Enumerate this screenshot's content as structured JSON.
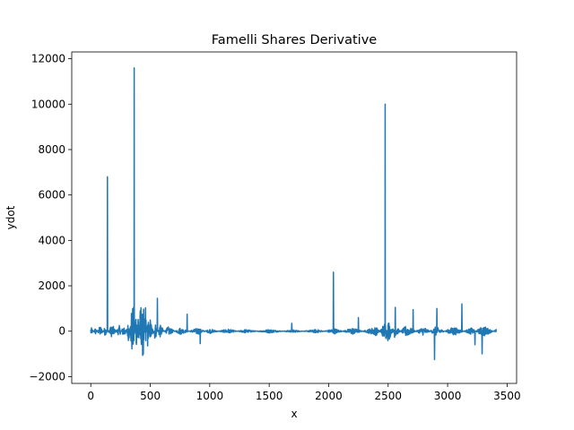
{
  "chart_data": {
    "type": "line",
    "title": "Famelli Shares Derivative",
    "xlabel": "x",
    "ylabel": "ydot",
    "xlim": [
      -160,
      3580
    ],
    "ylim": [
      -2300,
      12300
    ],
    "grid": false,
    "legend": "none",
    "x_ticks": [
      0,
      500,
      1000,
      1500,
      2000,
      2500,
      3000,
      3500
    ],
    "y_ticks": [
      -2000,
      0,
      2000,
      4000,
      6000,
      8000,
      10000,
      12000
    ],
    "x_tick_labels": [
      "0",
      "500",
      "1000",
      "1500",
      "2000",
      "2500",
      "3000",
      "3500"
    ],
    "y_tick_labels": [
      "−2000",
      "0",
      "2000",
      "4000",
      "6000",
      "8000",
      "10000",
      "12000"
    ],
    "series_color": "#1f77b4",
    "series": [
      {
        "x_start": 0,
        "x_end": 3410,
        "baseline_points": [
          [
            0,
            200
          ],
          [
            40,
            -150
          ],
          [
            80,
            250
          ],
          [
            120,
            -200
          ],
          [
            180,
            300
          ],
          [
            240,
            -250
          ],
          [
            280,
            350
          ],
          [
            320,
            -500
          ],
          [
            340,
            900
          ],
          [
            360,
            1100
          ],
          [
            380,
            -1400
          ],
          [
            400,
            1600
          ],
          [
            420,
            -1700
          ],
          [
            440,
            1850
          ],
          [
            460,
            -1300
          ],
          [
            480,
            900
          ],
          [
            500,
            -600
          ],
          [
            540,
            400
          ],
          [
            580,
            -300
          ],
          [
            650,
            200
          ],
          [
            750,
            -150
          ],
          [
            900,
            150
          ],
          [
            1000,
            -100
          ],
          [
            1150,
            100
          ],
          [
            1300,
            -80
          ],
          [
            1500,
            80
          ],
          [
            1700,
            -60
          ],
          [
            1900,
            80
          ],
          [
            2050,
            -120
          ],
          [
            2200,
            150
          ],
          [
            2400,
            -200
          ],
          [
            2480,
            450
          ],
          [
            2500,
            -550
          ],
          [
            2550,
            300
          ],
          [
            2650,
            -250
          ],
          [
            2800,
            200
          ],
          [
            2900,
            -200
          ],
          [
            3050,
            200
          ],
          [
            3200,
            -150
          ],
          [
            3300,
            250
          ],
          [
            3410,
            -80
          ]
        ],
        "spikes": [
          {
            "x": 140,
            "y": 6800
          },
          {
            "x": 365,
            "y": 11600
          },
          {
            "x": 560,
            "y": 1450
          },
          {
            "x": 810,
            "y": 750
          },
          {
            "x": 920,
            "y": -550
          },
          {
            "x": 1690,
            "y": 350
          },
          {
            "x": 2040,
            "y": 2600
          },
          {
            "x": 2250,
            "y": 600
          },
          {
            "x": 2475,
            "y": 10000
          },
          {
            "x": 2560,
            "y": 1050
          },
          {
            "x": 2710,
            "y": 950
          },
          {
            "x": 2890,
            "y": -1250
          },
          {
            "x": 2910,
            "y": 1000
          },
          {
            "x": 3120,
            "y": 1200
          },
          {
            "x": 3230,
            "y": -600
          },
          {
            "x": 3290,
            "y": -1000
          }
        ]
      }
    ]
  }
}
